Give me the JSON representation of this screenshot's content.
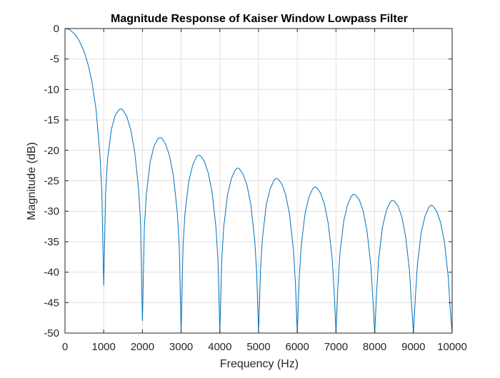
{
  "chart_data": {
    "type": "line",
    "title": "Magnitude Response of Kaiser Window Lowpass Filter",
    "xlabel": "Frequency (Hz)",
    "ylabel": "Magnitude (dB)",
    "xlim": [
      0,
      10000
    ],
    "ylim": [
      -50,
      0
    ],
    "x_ticks": [
      0,
      1000,
      2000,
      3000,
      4000,
      5000,
      6000,
      7000,
      8000,
      9000,
      10000
    ],
    "y_ticks": [
      0,
      -5,
      -10,
      -15,
      -20,
      -25,
      -30,
      -35,
      -40,
      -45,
      -50
    ],
    "grid": true,
    "legend": null,
    "line_color": "#0072BD",
    "series": [
      {
        "x": [
          0,
          100,
          200,
          300,
          400,
          500,
          600,
          700,
          800,
          900,
          950,
          1000,
          1050,
          1100,
          1200,
          1300,
          1400,
          1450,
          1500,
          1600,
          1700,
          1800,
          1900,
          1950,
          2000,
          2050,
          2100,
          2200,
          2300,
          2400,
          2450,
          2500,
          2600,
          2700,
          2800,
          2900,
          2950,
          3000,
          3050,
          3100,
          3200,
          3300,
          3400,
          3450,
          3500,
          3600,
          3700,
          3800,
          3900,
          3950,
          4000,
          4050,
          4100,
          4200,
          4300,
          4400,
          4450,
          4500,
          4600,
          4700,
          4800,
          4900,
          4950,
          5000,
          5050,
          5100,
          5200,
          5300,
          5400,
          5450,
          5500,
          5600,
          5700,
          5800,
          5900,
          5950,
          6000,
          6050,
          6100,
          6200,
          6300,
          6400,
          6450,
          6500,
          6600,
          6700,
          6800,
          6900,
          6950,
          7000,
          7050,
          7100,
          7200,
          7300,
          7400,
          7450,
          7500,
          7600,
          7700,
          7800,
          7900,
          7950,
          8000,
          8050,
          8100,
          8200,
          8300,
          8400,
          8450,
          8500,
          8600,
          8700,
          8800,
          8900,
          8950,
          9000,
          9050,
          9100,
          9200,
          9300,
          9400,
          9450,
          9500,
          9600,
          9700,
          9800,
          9900,
          9950,
          10000
        ],
        "values": [
          0,
          -0.1,
          -0.6,
          -1.3,
          -2.4,
          -3.9,
          -6.0,
          -8.9,
          -13.2,
          -20.4,
          -26.6,
          -42.2,
          -27.0,
          -21.4,
          -16.5,
          -14.2,
          -13.3,
          -13.2,
          -13.4,
          -14.5,
          -16.7,
          -20.2,
          -26.3,
          -31.6,
          -48.0,
          -32.6,
          -27.3,
          -21.9,
          -19.3,
          -18.1,
          -17.9,
          -18.0,
          -19.0,
          -20.9,
          -24.2,
          -30.1,
          -35.5,
          -50.0,
          -35.5,
          -30.3,
          -25.0,
          -22.4,
          -21.0,
          -20.8,
          -20.9,
          -21.8,
          -23.7,
          -26.9,
          -32.7,
          -38.0,
          -50.0,
          -37.8,
          -32.6,
          -27.2,
          -24.6,
          -23.2,
          -22.9,
          -23.0,
          -23.9,
          -25.7,
          -28.9,
          -34.7,
          -40.0,
          -50.0,
          -39.6,
          -34.4,
          -28.9,
          -26.3,
          -24.9,
          -24.6,
          -24.7,
          -25.5,
          -27.3,
          -30.5,
          -36.3,
          -41.6,
          -50.0,
          -41.0,
          -35.8,
          -30.4,
          -27.7,
          -26.3,
          -26.0,
          -26.1,
          -27.0,
          -28.8,
          -32.0,
          -37.7,
          -43.0,
          -50.0,
          -42.2,
          -37.0,
          -31.6,
          -28.9,
          -27.5,
          -27.2,
          -27.3,
          -28.1,
          -29.9,
          -33.2,
          -38.9,
          -44.2,
          -50.0,
          -43.2,
          -38.0,
          -32.6,
          -29.9,
          -28.5,
          -28.2,
          -28.3,
          -29.1,
          -30.9,
          -34.2,
          -39.9,
          -45.2,
          -50.0,
          -44.2,
          -39.0,
          -33.5,
          -30.8,
          -29.3,
          -29.0,
          -29.1,
          -30.0,
          -31.8,
          -35.0,
          -40.8,
          -46.1,
          -50.0
        ]
      }
    ]
  }
}
